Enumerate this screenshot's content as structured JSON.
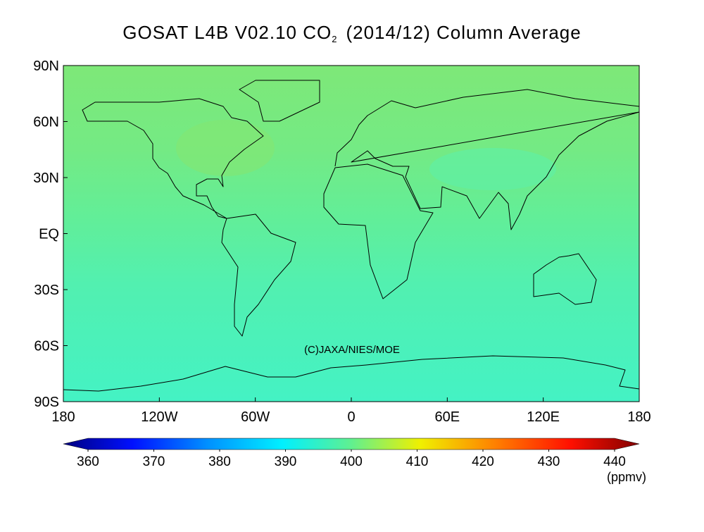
{
  "title": {
    "text": "GOSAT L4B V02.10 CO",
    "subscript": "2",
    "suffix": "(2014/12) Column Average"
  },
  "map": {
    "xlim": [
      -180,
      180
    ],
    "ylim": [
      -90,
      90
    ],
    "xticks": [
      {
        "value": -180,
        "label": "180"
      },
      {
        "value": -120,
        "label": "120W"
      },
      {
        "value": -60,
        "label": "60W"
      },
      0,
      {
        "value": 60,
        "label": "60E"
      },
      {
        "value": 120,
        "label": "120E"
      },
      {
        "value": 180,
        "label": "180"
      }
    ],
    "yticks": [
      {
        "value": -90,
        "label": "90S"
      },
      {
        "value": -60,
        "label": "60S"
      },
      {
        "value": -30,
        "label": "30S"
      },
      {
        "value": 0,
        "label": "EQ"
      },
      {
        "value": 30,
        "label": "30N"
      },
      {
        "value": 60,
        "label": "60N"
      },
      {
        "value": 90,
        "label": "90N"
      }
    ],
    "credit": "(C)JAXA/NIES/MOE"
  },
  "colorbar": {
    "ticks": [
      360,
      370,
      380,
      390,
      400,
      410,
      420,
      430,
      440
    ],
    "unit": "(ppmv)"
  }
}
